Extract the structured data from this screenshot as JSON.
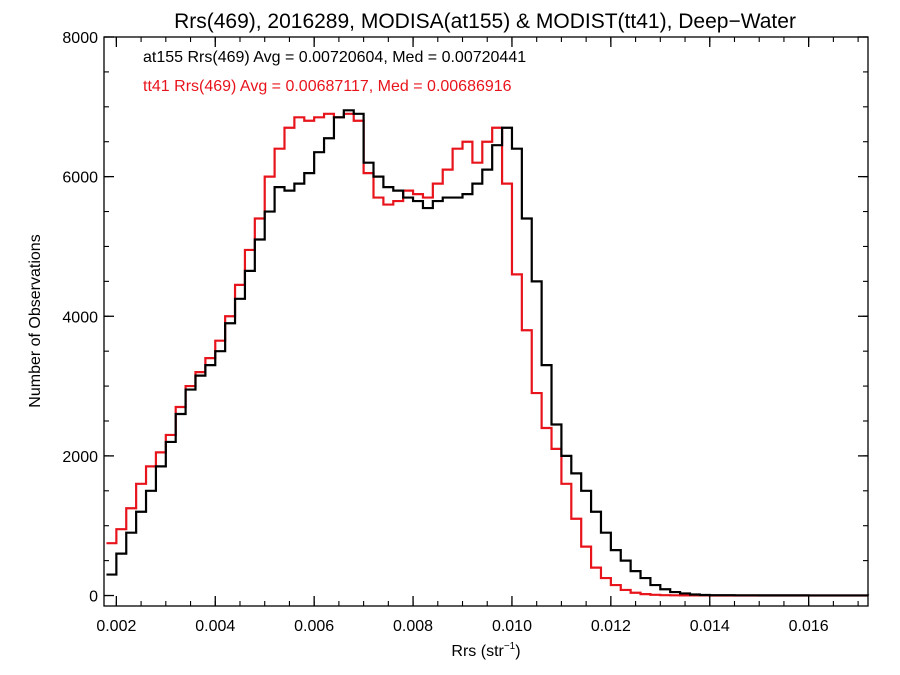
{
  "colors": {
    "series_a": "#000000",
    "series_b": "#e8141c",
    "axis": "#000000",
    "background": "#ffffff"
  },
  "chart_data": {
    "type": "line",
    "step": true,
    "title": "Rrs(469), 2016289, MODISA(at155) & MODIST(tt41), Deep−Water",
    "xlabel_main": "Rrs (str",
    "xlabel_sup": "−1",
    "xlabel_end": ")",
    "ylabel": "Number of Observations",
    "xlim": [
      0.00175,
      0.0172
    ],
    "ylim": [
      -150,
      8000
    ],
    "xticks": [
      0.002,
      0.004,
      0.006,
      0.008,
      0.01,
      0.012,
      0.014,
      0.016
    ],
    "xtick_labels": [
      "0.002",
      "0.004",
      "0.006",
      "0.008",
      "0.010",
      "0.012",
      "0.014",
      "0.016"
    ],
    "yticks": [
      0,
      2000,
      4000,
      6000,
      8000
    ],
    "ytick_labels": [
      "0",
      "2000",
      "4000",
      "6000",
      "8000"
    ],
    "annotations": [
      "at155 Rrs(469) Avg = 0.00720604, Med = 0.00720441",
      "tt41 Rrs(469) Avg = 0.00687117, Med = 0.00686916"
    ],
    "legend_placement": "top-left",
    "grid": false,
    "x": [
      0.0018,
      0.002,
      0.0022,
      0.0024,
      0.0026,
      0.0028,
      0.003,
      0.0032,
      0.0034,
      0.0036,
      0.0038,
      0.004,
      0.0042,
      0.0044,
      0.0046,
      0.0048,
      0.005,
      0.0052,
      0.0054,
      0.0056,
      0.0058,
      0.006,
      0.0062,
      0.0064,
      0.0066,
      0.0068,
      0.007,
      0.0072,
      0.0074,
      0.0076,
      0.0078,
      0.008,
      0.0082,
      0.0084,
      0.0086,
      0.0088,
      0.009,
      0.0092,
      0.0094,
      0.0096,
      0.0098,
      0.01,
      0.0102,
      0.0104,
      0.0106,
      0.0108,
      0.011,
      0.0112,
      0.0114,
      0.0116,
      0.0118,
      0.012,
      0.0122,
      0.0124,
      0.0126,
      0.0128,
      0.013,
      0.0132,
      0.0134,
      0.0136,
      0.0138,
      0.014,
      0.0145,
      0.015,
      0.016,
      0.0172
    ],
    "series": [
      {
        "values": [
          300,
          600,
          900,
          1200,
          1500,
          1850,
          2200,
          2600,
          2950,
          3150,
          3300,
          3500,
          3900,
          4250,
          4650,
          5100,
          5500,
          5850,
          5800,
          5900,
          6050,
          6350,
          6550,
          6850,
          6950,
          6900,
          6200,
          6000,
          5850,
          5800,
          5700,
          5650,
          5550,
          5650,
          5700,
          5700,
          5750,
          5900,
          6100,
          6450,
          6700,
          6400,
          5400,
          4500,
          3300,
          2450,
          2000,
          1750,
          1500,
          1200,
          900,
          650,
          500,
          350,
          250,
          150,
          90,
          50,
          30,
          15,
          8,
          5,
          3,
          2,
          1,
          0
        ]
      },
      {
        "values": [
          750,
          950,
          1250,
          1600,
          1850,
          2050,
          2300,
          2700,
          3000,
          3200,
          3400,
          3650,
          4000,
          4450,
          4950,
          5400,
          6000,
          6400,
          6700,
          6850,
          6800,
          6850,
          6900,
          6850,
          6900,
          6800,
          6050,
          5700,
          5600,
          5650,
          5800,
          5750,
          5700,
          5900,
          6100,
          6400,
          6500,
          6200,
          6500,
          6700,
          5900,
          4600,
          3800,
          2900,
          2400,
          2100,
          1600,
          1100,
          700,
          400,
          250,
          150,
          80,
          40,
          20,
          10,
          5,
          3,
          2,
          1,
          1,
          0,
          0,
          0,
          0,
          0
        ]
      }
    ]
  }
}
